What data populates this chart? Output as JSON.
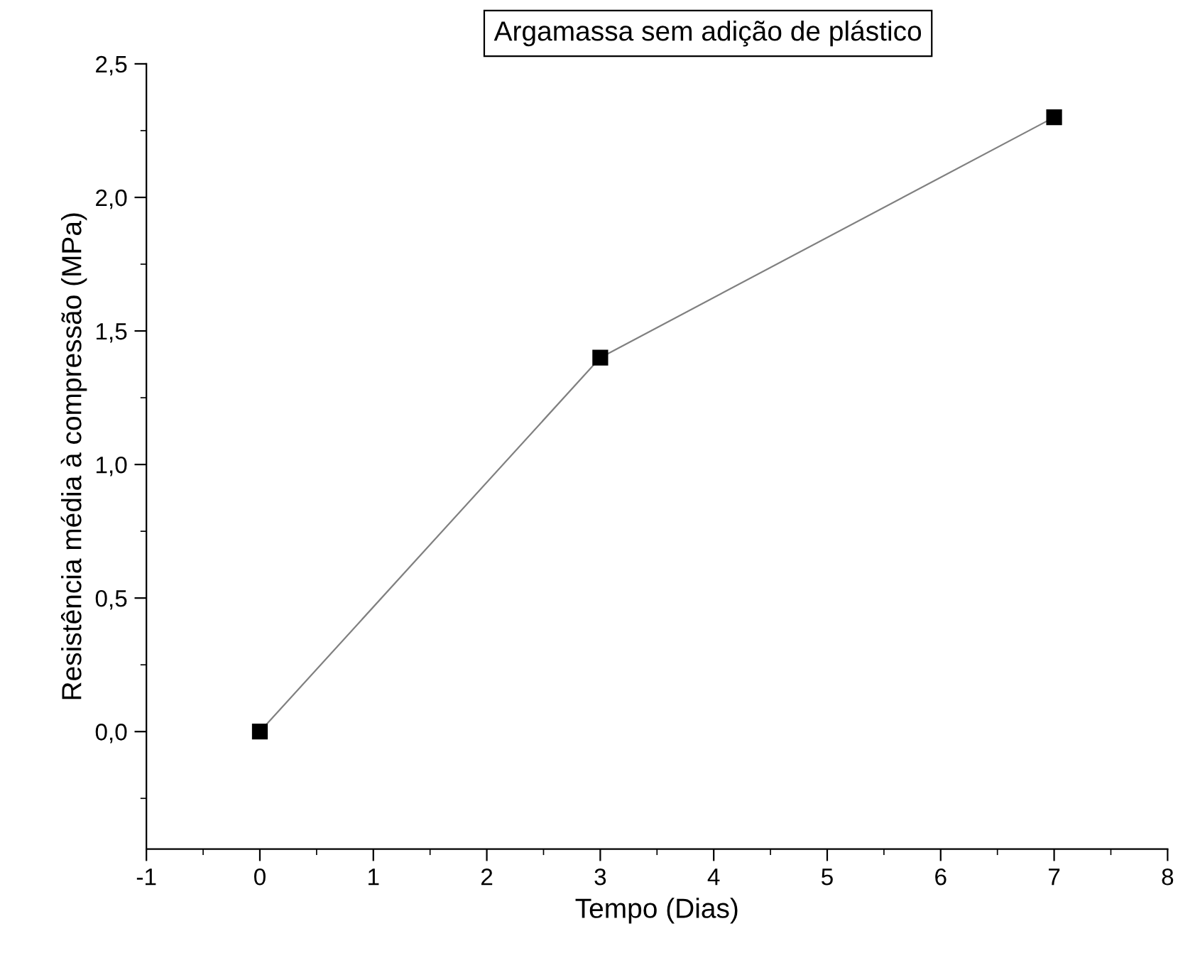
{
  "chart_data": {
    "type": "line",
    "title": "Argamassa sem adição de plástico",
    "xlabel": "Tempo (Dias)",
    "ylabel": "Resistência média à compressão (MPa)",
    "x": [
      0,
      3,
      7
    ],
    "series": [
      {
        "color": "#000000",
        "values": [
          0,
          1.4,
          2.3
        ]
      }
    ],
    "marker": "square",
    "line_style": "solid",
    "grid": false,
    "legend": false,
    "xlim": [
      -1,
      8
    ],
    "xticks": [
      -1,
      0,
      1,
      2,
      3,
      4,
      5,
      6,
      7,
      8
    ],
    "ylim": [
      -0.44,
      2.5
    ],
    "yticks": [
      {
        "value": 0,
        "label": "0,0"
      },
      {
        "value": 0.5,
        "label": "0,5"
      },
      {
        "value": 1,
        "label": "1,0"
      },
      {
        "value": 1.5,
        "label": "1,5"
      },
      {
        "value": 2,
        "label": "2,0"
      },
      {
        "value": 2.5,
        "label": "2,5"
      }
    ]
  }
}
